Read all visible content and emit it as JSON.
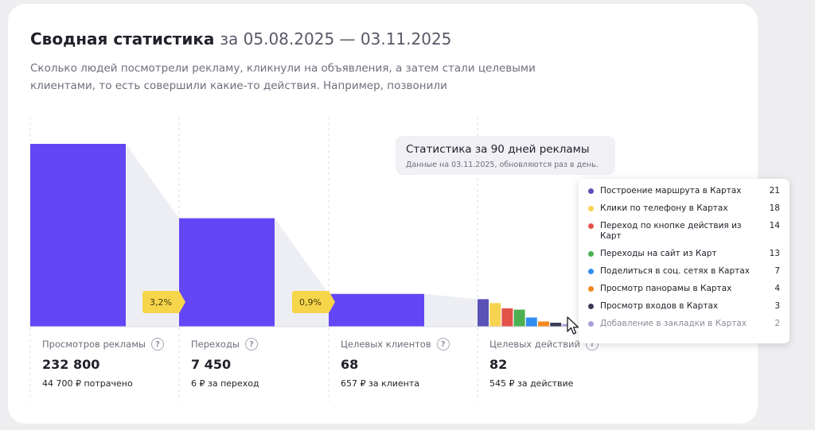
{
  "header": {
    "title": "Сводная статистика",
    "date_range": "за 05.08.2025 — 03.11.2025",
    "description": "Сколько людей посмотрели рекламу, кликнули на объявления, а затем стали целевыми клиентами, то есть совершили какие-то действия. Например, позвонили"
  },
  "info": {
    "title": "Статистика за 90 дней рекламы",
    "subtitle": "Данные на 03.11.2025, обновляются раз в день."
  },
  "columns": [
    {
      "label": "Просмотров рекламы",
      "value": "232 800",
      "sub": "44 700 ₽ потрачено"
    },
    {
      "label": "Переходы",
      "value": "7 450",
      "sub": "6 ₽ за переход"
    },
    {
      "label": "Целевых клиентов",
      "value": "68",
      "sub": "657 ₽ за клиента"
    },
    {
      "label": "Целевых действий",
      "value": "82",
      "sub": "545 ₽ за действие"
    }
  ],
  "badges": [
    "3,2%",
    "0,9%"
  ],
  "help_glyph": "?",
  "colors": {
    "funnel_bar": "#6346f5",
    "funnel_connector": "#eceef4",
    "badge": "#f7d54a"
  },
  "chart_data": {
    "type": "bar",
    "funnel": {
      "categories": [
        "Просмотров рекламы",
        "Переходы",
        "Целевых клиентов",
        "Целевых действий"
      ],
      "values": [
        232800,
        7450,
        68,
        82
      ]
    },
    "conversions": [
      "3,2%",
      "0,9%"
    ],
    "actions": {
      "categories": [
        "Построение маршрута в Картах",
        "Клики по телефону в Картах",
        "Переход по кнопке действия из Карт",
        "Переходы на сайт из Карт",
        "Поделиться в соц. сетях в Картах",
        "Просмотр панорамы в Картах",
        "Просмотр входов в Картах",
        "Добавление в закладки в Картах"
      ],
      "values": [
        21,
        18,
        14,
        13,
        7,
        4,
        3,
        2
      ],
      "colors": [
        "#5b52b8",
        "#f8d34f",
        "#e4534a",
        "#4cb050",
        "#2f8ef0",
        "#f58a1f",
        "#3b3b57",
        "#a59fd9"
      ]
    }
  }
}
